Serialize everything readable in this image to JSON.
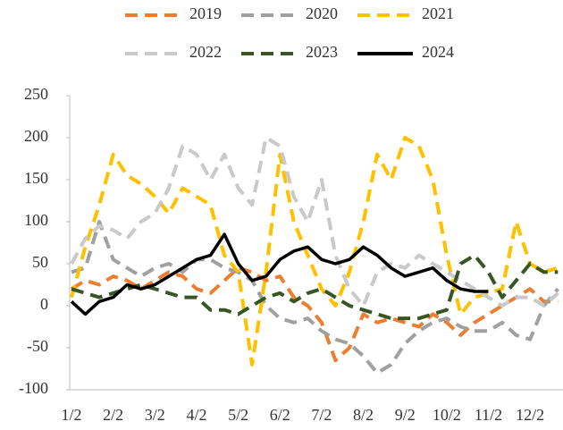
{
  "chart_data": {
    "type": "line",
    "categories": [
      "1/2",
      null,
      null,
      "2/2",
      null,
      null,
      "3/2",
      null,
      null,
      "4/2",
      null,
      null,
      "5/2",
      null,
      null,
      "6/2",
      null,
      null,
      "7/2",
      null,
      null,
      "8/2",
      null,
      null,
      "9/2",
      null,
      null,
      "10/2",
      null,
      null,
      "11/2",
      null,
      null,
      "12/2",
      null,
      null
    ],
    "series": [
      {
        "name": "2019",
        "color": "#ED7D31",
        "dashed": true,
        "values": [
          20,
          30,
          25,
          35,
          30,
          20,
          30,
          40,
          35,
          20,
          15,
          30,
          45,
          40,
          30,
          35,
          10,
          0,
          -20,
          -65,
          -50,
          -10,
          -20,
          -15,
          -20,
          -25,
          -10,
          -20,
          -35,
          -20,
          -10,
          0,
          10,
          20,
          5,
          5
        ]
      },
      {
        "name": "2020",
        "color": "#A0A0A0",
        "dashed": true,
        "values": [
          40,
          45,
          100,
          55,
          45,
          35,
          45,
          50,
          40,
          55,
          55,
          45,
          40,
          30,
          0,
          -15,
          -20,
          -15,
          -30,
          -40,
          -45,
          -60,
          -80,
          -70,
          -45,
          -30,
          -20,
          -15,
          -25,
          -30,
          -30,
          -20,
          -35,
          -40,
          0,
          20
        ]
      },
      {
        "name": "2021",
        "color": "#FFC000",
        "dashed": true,
        "values": [
          10,
          70,
          120,
          180,
          155,
          145,
          130,
          110,
          140,
          130,
          120,
          60,
          40,
          -70,
          40,
          180,
          100,
          60,
          20,
          0,
          40,
          100,
          180,
          150,
          200,
          190,
          150,
          60,
          -10,
          10,
          15,
          20,
          100,
          50,
          40,
          45
        ]
      },
      {
        "name": "2022",
        "color": "#C9C9C9",
        "dashed": true,
        "values": [
          50,
          80,
          95,
          90,
          80,
          100,
          110,
          140,
          190,
          180,
          150,
          180,
          140,
          120,
          200,
          190,
          130,
          100,
          150,
          60,
          20,
          0,
          40,
          50,
          45,
          60,
          50,
          40,
          30,
          20,
          10,
          0,
          10,
          10,
          0,
          15
        ]
      },
      {
        "name": "2023",
        "color": "#375623",
        "dashed": true,
        "values": [
          20,
          15,
          10,
          15,
          20,
          25,
          20,
          15,
          10,
          10,
          -5,
          -5,
          -10,
          0,
          10,
          15,
          5,
          15,
          20,
          10,
          0,
          -5,
          -10,
          -15,
          -15,
          -15,
          -10,
          -5,
          50,
          60,
          40,
          10,
          30,
          50,
          40,
          40
        ]
      },
      {
        "name": "2024",
        "color": "#000000",
        "dashed": false,
        "values": [
          5,
          -10,
          5,
          10,
          25,
          20,
          25,
          35,
          45,
          55,
          60,
          85,
          50,
          30,
          35,
          55,
          65,
          70,
          55,
          50,
          55,
          70,
          60,
          45,
          35,
          40,
          45,
          30,
          20,
          17,
          17,
          null,
          null,
          null,
          null,
          null
        ]
      }
    ],
    "ylim": [
      -100,
      250
    ],
    "yticks": [
      -100,
      -50,
      0,
      50,
      100,
      150,
      200,
      250
    ]
  }
}
